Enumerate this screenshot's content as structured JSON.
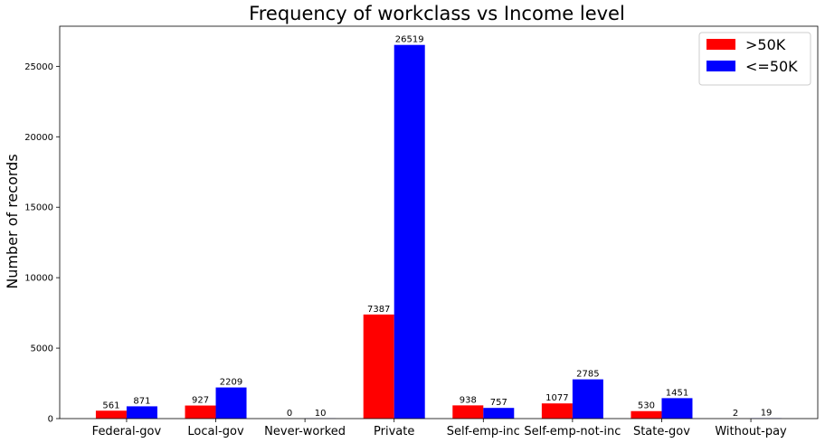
{
  "chart_data": {
    "type": "bar",
    "title": "Frequency of workclass vs Income level",
    "xlabel": "",
    "ylabel": "Number of records",
    "categories": [
      "Federal-gov",
      "Local-gov",
      "Never-worked",
      "Private",
      "Self-emp-inc",
      "Self-emp-not-inc",
      "State-gov",
      "Without-pay"
    ],
    "series": [
      {
        "name": ">50K",
        "color": "#ff0000",
        "values": [
          561,
          927,
          0,
          7387,
          938,
          1077,
          530,
          2
        ]
      },
      {
        "name": "<=50K",
        "color": "#0000ff",
        "values": [
          871,
          2209,
          10,
          26519,
          757,
          2785,
          1451,
          19
        ]
      }
    ],
    "ylim": [
      0,
      27846
    ],
    "yticks": [
      0,
      5000,
      10000,
      15000,
      20000,
      25000
    ],
    "legend_position": "top-right",
    "grid": false,
    "data_labels": true
  }
}
